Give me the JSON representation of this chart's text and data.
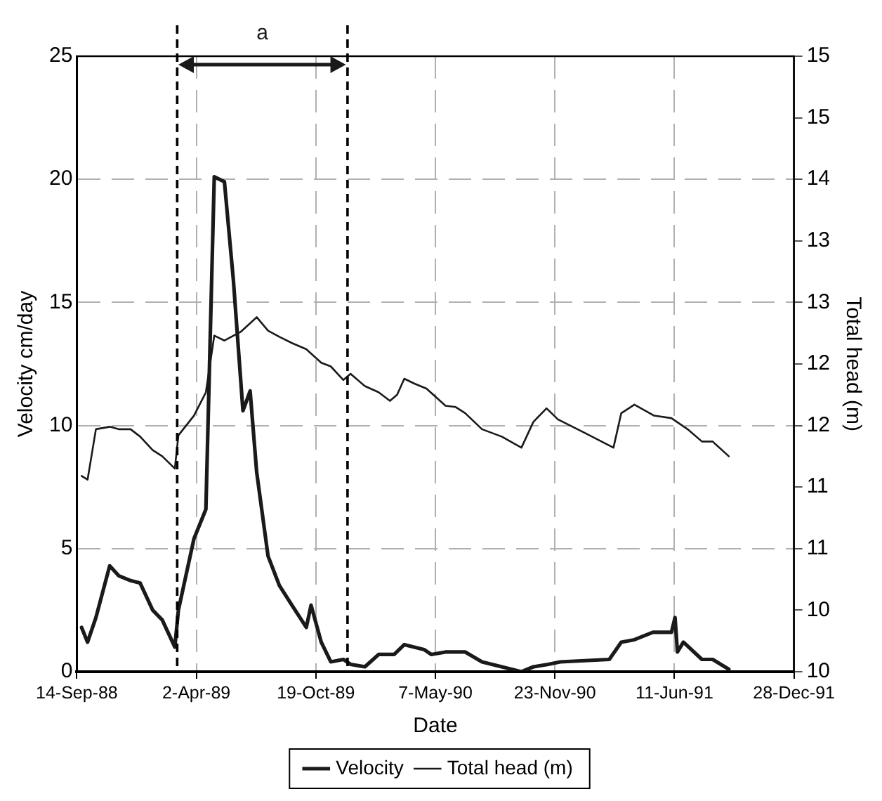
{
  "chart_data": {
    "type": "line",
    "xlabel": "Date",
    "ylabel": "Velocity cm/day",
    "y2label": "Total head (m)",
    "xlim": [
      "1988-09-14",
      "1991-12-28"
    ],
    "xticks": [
      {
        "value": "1988-09-14",
        "label": "14-Sep-88"
      },
      {
        "value": "1989-04-02",
        "label": "2-Apr-89"
      },
      {
        "value": "1989-10-19",
        "label": "19-Oct-89"
      },
      {
        "value": "1990-05-07",
        "label": "7-May-90"
      },
      {
        "value": "1990-11-23",
        "label": "23-Nov-90"
      },
      {
        "value": "1991-06-11",
        "label": "11-Jun-91"
      },
      {
        "value": "1991-12-28",
        "label": "28-Dec-91"
      }
    ],
    "ylim": [
      0,
      25
    ],
    "yticks": [
      0,
      5,
      10,
      15,
      20,
      25
    ],
    "y2lim": [
      10,
      15
    ],
    "y2ticks": [
      10,
      {
        "value": 10.5,
        "label": "10"
      },
      11,
      {
        "value": 11.5,
        "label": "11"
      },
      12,
      {
        "value": 12.5,
        "label": "12"
      },
      13,
      {
        "value": 13.5,
        "label": "13"
      },
      14,
      {
        "value": 14.5,
        "label": "15"
      },
      15
    ],
    "grid": true,
    "legend": "bottom",
    "line_style": "solid",
    "marker": "none",
    "series": [
      {
        "name": "Velocity",
        "color": "#1a1a1a",
        "x": [
          "1988-09-22",
          "1988-10-02",
          "1988-10-16",
          "1988-11-08",
          "1988-11-23",
          "1988-12-13",
          "1988-12-29",
          "1989-01-19",
          "1989-02-04",
          "1989-02-25",
          "1989-03-03",
          "1989-03-29",
          "1989-04-18",
          "1989-05-02",
          "1989-05-19",
          "1989-06-03",
          "1989-06-19",
          "1989-07-01",
          "1989-07-12",
          "1989-07-31",
          "1989-08-19",
          "1989-09-09",
          "1989-10-03",
          "1989-10-11",
          "1989-10-28",
          "1989-11-13",
          "1989-12-04",
          "1989-12-16",
          "1990-01-09",
          "1990-02-01",
          "1990-02-27",
          "1990-03-16",
          "1990-04-18",
          "1990-04-30",
          "1990-05-24",
          "1990-06-26",
          "1990-07-24",
          "1990-08-26",
          "1990-09-28",
          "1990-10-18",
          "1990-11-12",
          "1990-12-02",
          "1991-02-22",
          "1991-03-14",
          "1991-04-05",
          "1991-05-06",
          "1991-06-06",
          "1991-06-12",
          "1991-06-16",
          "1991-06-26",
          "1991-07-27",
          "1991-08-14",
          "1991-09-10"
        ],
        "values": [
          1.8,
          1.2,
          2.2,
          4.3,
          3.9,
          3.7,
          3.6,
          2.5,
          2.1,
          1.0,
          2.5,
          5.4,
          6.6,
          20.1,
          19.9,
          15.9,
          10.6,
          11.4,
          8.1,
          4.7,
          3.5,
          2.7,
          1.8,
          2.7,
          1.2,
          0.4,
          0.5,
          0.3,
          0.2,
          0.7,
          0.7,
          1.1,
          0.9,
          0.7,
          0.8,
          0.8,
          0.4,
          0.2,
          0.0,
          0.2,
          0.3,
          0.4,
          0.5,
          1.2,
          1.3,
          1.6,
          1.6,
          2.2,
          0.8,
          1.2,
          0.5,
          0.5,
          0.1
        ]
      },
      {
        "name": "Total head (m)",
        "color": "#1a1a1a",
        "axis": "y2",
        "x": [
          "1988-09-22",
          "1988-10-02",
          "1988-10-16",
          "1988-11-08",
          "1988-11-23",
          "1988-12-13",
          "1988-12-29",
          "1989-01-19",
          "1989-02-04",
          "1989-02-25",
          "1989-03-03",
          "1989-03-29",
          "1989-04-18",
          "1989-05-02",
          "1989-05-19",
          "1989-06-15",
          "1989-07-12",
          "1989-07-31",
          "1989-08-19",
          "1989-09-09",
          "1989-10-03",
          "1989-10-28",
          "1989-11-13",
          "1989-12-04",
          "1989-12-16",
          "1990-01-09",
          "1990-02-01",
          "1990-02-20",
          "1990-03-04",
          "1990-03-16",
          "1990-04-02",
          "1990-04-22",
          "1990-05-24",
          "1990-06-10",
          "1990-06-26",
          "1990-07-24",
          "1990-08-26",
          "1990-09-28",
          "1990-10-18",
          "1990-11-09",
          "1990-11-28",
          "1991-01-12",
          "1991-03-01",
          "1991-03-14",
          "1991-04-05",
          "1991-05-08",
          "1991-06-06",
          "1991-07-03",
          "1991-07-27",
          "1991-08-14",
          "1991-09-10"
        ],
        "values": [
          11.59,
          11.56,
          11.97,
          11.99,
          11.97,
          11.97,
          11.91,
          11.8,
          11.75,
          11.65,
          11.92,
          12.08,
          12.27,
          12.73,
          12.69,
          12.76,
          12.88,
          12.77,
          12.72,
          12.67,
          12.62,
          12.51,
          12.48,
          12.37,
          12.42,
          12.32,
          12.27,
          12.2,
          12.25,
          12.38,
          12.34,
          12.3,
          12.16,
          12.15,
          12.1,
          11.97,
          11.91,
          11.82,
          12.03,
          12.14,
          12.05,
          11.94,
          11.82,
          12.1,
          12.17,
          12.08,
          12.06,
          11.97,
          11.87,
          11.87,
          11.75
        ]
      }
    ],
    "ref_lines": [
      {
        "axis": "x",
        "value": "1989-03-01",
        "color": "#000000",
        "line_style": "dashed"
      },
      {
        "axis": "x",
        "value": "1989-12-11",
        "color": "#000000",
        "line_style": "dashed"
      }
    ],
    "annotations": [
      "a"
    ]
  }
}
